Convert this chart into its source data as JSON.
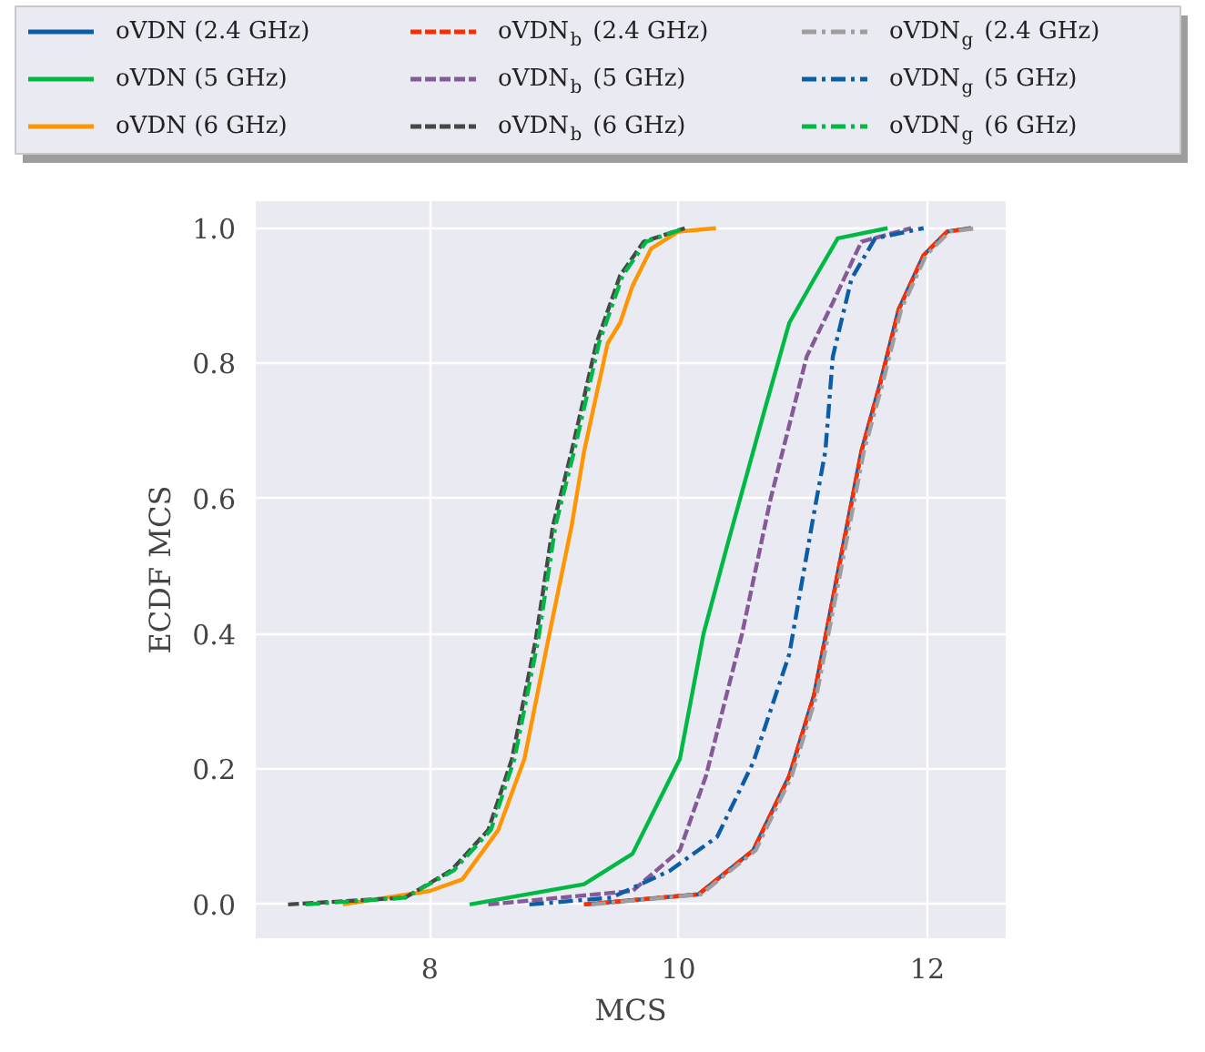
{
  "chart_data": {
    "type": "line",
    "xlabel": "MCS",
    "ylabel": "ECDF MCS",
    "xlim": [
      6.6,
      12.63
    ],
    "ylim": [
      -0.05,
      1.04
    ],
    "xticks": [
      8,
      10,
      12
    ],
    "yticks": [
      {
        "value": 0,
        "label": "0.0"
      },
      {
        "value": 0.2,
        "label": "0.2"
      },
      {
        "value": 0.4,
        "label": "0.4"
      },
      {
        "value": 0.6,
        "label": "0.6"
      },
      {
        "value": 0.8,
        "label": "0.8"
      },
      {
        "value": 1,
        "label": "1.0"
      }
    ],
    "grid": true,
    "legend": "top",
    "series": [
      {
        "name": "oVDN (2.4 GHz)",
        "color": "#0c5da5",
        "line_style": "solid",
        "x": [
          9.24,
          10.16,
          10.6,
          10.89,
          11.09,
          11.28,
          11.47,
          11.62,
          11.77,
          11.97,
          12.16,
          12.35
        ],
        "values": [
          0,
          0.015,
          0.08,
          0.19,
          0.31,
          0.49,
          0.67,
          0.77,
          0.88,
          0.96,
          0.995,
          1.0
        ]
      },
      {
        "name": "oVDN (5 GHz)",
        "color": "#00b945",
        "line_style": "solid",
        "x": [
          8.32,
          9.24,
          9.63,
          10.01,
          10.2,
          10.39,
          10.69,
          10.89,
          11.09,
          11.28,
          11.68
        ],
        "values": [
          0,
          0.03,
          0.075,
          0.215,
          0.4,
          0.53,
          0.73,
          0.86,
          0.925,
          0.985,
          1.0
        ]
      },
      {
        "name": "oVDN (6 GHz)",
        "color": "#ff9500",
        "line_style": "solid",
        "x": [
          7.3,
          8.0,
          8.26,
          8.55,
          8.76,
          8.95,
          9.14,
          9.24,
          9.43,
          9.53,
          9.63,
          9.78,
          10.0,
          10.3
        ],
        "values": [
          0,
          0.02,
          0.037,
          0.11,
          0.215,
          0.39,
          0.56,
          0.67,
          0.83,
          0.86,
          0.915,
          0.97,
          0.995,
          1.0
        ]
      },
      {
        "name": "oVDN$_{b}$ (2.4 GHz)",
        "color": "#ff2c00",
        "line_style": "dashed",
        "x": [
          9.24,
          10.16,
          10.6,
          10.89,
          11.09,
          11.28,
          11.47,
          11.62,
          11.77,
          11.97,
          12.16,
          12.35
        ],
        "values": [
          0,
          0.015,
          0.08,
          0.19,
          0.31,
          0.49,
          0.67,
          0.77,
          0.88,
          0.96,
          0.995,
          1.0
        ]
      },
      {
        "name": "oVDN$_{b}$ (5 GHz)",
        "color": "#845b97",
        "line_style": "dashed",
        "x": [
          8.47,
          9.63,
          10.01,
          10.22,
          10.51,
          10.74,
          11.03,
          11.24,
          11.47,
          11.87
        ],
        "values": [
          0,
          0.02,
          0.08,
          0.19,
          0.4,
          0.6,
          0.81,
          0.89,
          0.98,
          1.0
        ]
      },
      {
        "name": "oVDN$_{b}$ (6 GHz)",
        "color": "#474747",
        "line_style": "dashed",
        "x": [
          6.86,
          7.8,
          8.17,
          8.47,
          8.66,
          8.85,
          8.99,
          9.14,
          9.24,
          9.34,
          9.53,
          9.72,
          10.05
        ],
        "values": [
          0,
          0.01,
          0.05,
          0.11,
          0.215,
          0.39,
          0.56,
          0.67,
          0.75,
          0.83,
          0.93,
          0.98,
          1.0
        ]
      },
      {
        "name": "oVDN$_{g}$ (2.4 GHz)",
        "color": "#9e9e9e",
        "line_style": "dashdot",
        "x": [
          9.3,
          10.18,
          10.62,
          10.91,
          11.11,
          11.3,
          11.49,
          11.64,
          11.79,
          11.99,
          12.18,
          12.4
        ],
        "values": [
          0,
          0.015,
          0.08,
          0.19,
          0.31,
          0.49,
          0.67,
          0.77,
          0.88,
          0.96,
          0.995,
          1.0
        ]
      },
      {
        "name": "oVDN$_{g}$ (5 GHz)",
        "color": "#0c5da5",
        "line_style": "dashdot",
        "x": [
          8.8,
          9.46,
          9.93,
          10.31,
          10.6,
          10.89,
          11.09,
          11.18,
          11.24,
          11.39,
          11.58,
          11.97
        ],
        "values": [
          0,
          0.01,
          0.05,
          0.1,
          0.21,
          0.37,
          0.58,
          0.67,
          0.81,
          0.925,
          0.985,
          1.0
        ]
      },
      {
        "name": "oVDN$_{g}$ (6 GHz)",
        "color": "#00b945",
        "line_style": "dashdot",
        "x": [
          7.0,
          7.8,
          8.19,
          8.49,
          8.68,
          8.87,
          9.01,
          9.16,
          9.26,
          9.36,
          9.55,
          9.74,
          10.05
        ],
        "values": [
          0,
          0.01,
          0.05,
          0.11,
          0.215,
          0.39,
          0.56,
          0.67,
          0.75,
          0.83,
          0.93,
          0.98,
          1.0
        ]
      }
    ]
  }
}
